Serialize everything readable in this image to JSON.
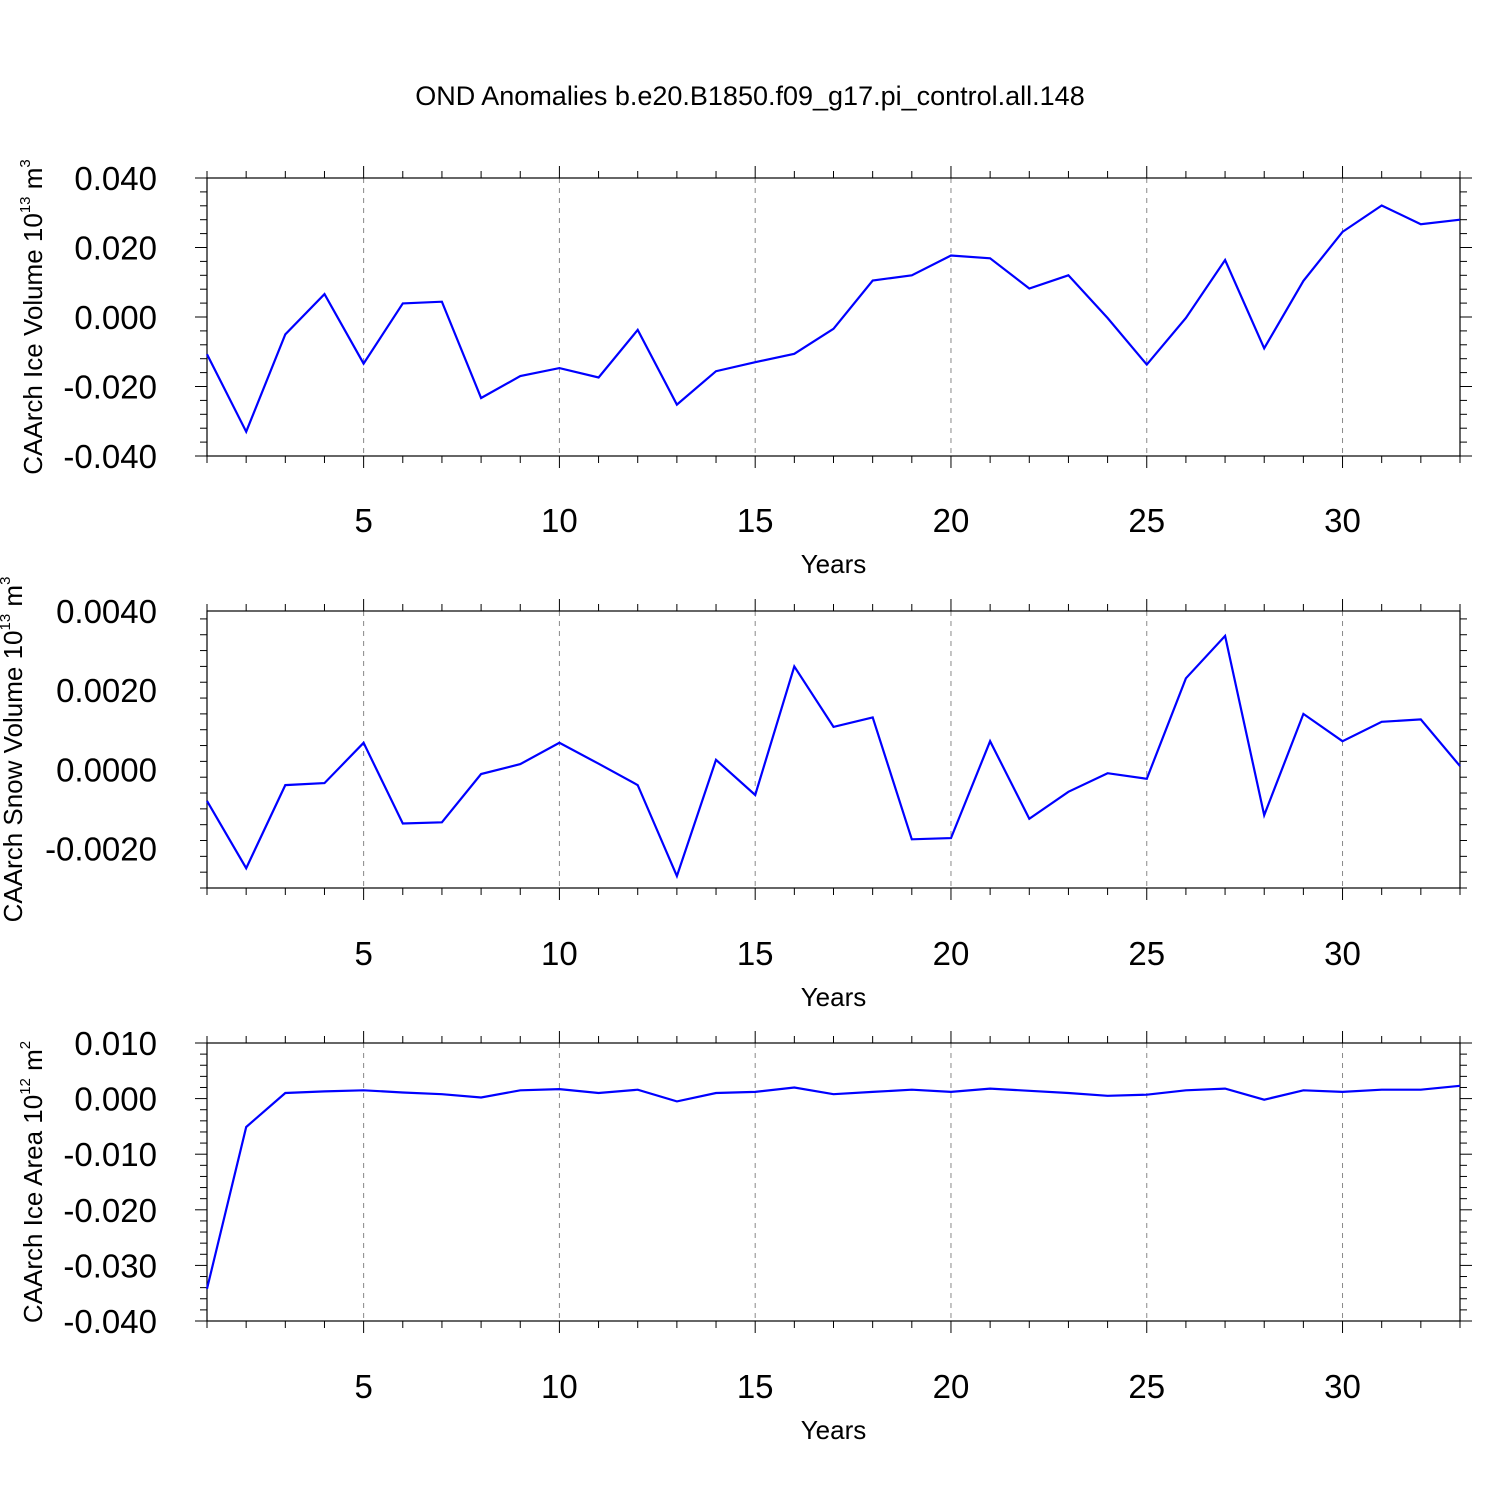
{
  "title": "OND Anomalies b.e20.B1850.f09_g17.pi_control.all.148",
  "line_color": "#0000ff",
  "chart_data": [
    {
      "type": "line",
      "xlabel": "Years",
      "ylabel": {
        "prefix": "CAArch Ice Volume 10",
        "exp": "13",
        "unit": " m",
        "unit_exp": "3"
      },
      "ylim": [
        -0.04,
        0.04
      ],
      "xlim": [
        1,
        33
      ],
      "yticks": [
        -0.04,
        -0.02,
        0.0,
        0.02,
        0.04
      ],
      "ytick_labels": [
        "-0.040",
        "-0.020",
        "0.000",
        "0.020",
        "0.040"
      ],
      "xticks": [
        5,
        10,
        15,
        20,
        25,
        30
      ],
      "x": [
        1,
        2,
        3,
        4,
        5,
        6,
        7,
        8,
        9,
        10,
        11,
        12,
        13,
        14,
        15,
        16,
        17,
        18,
        19,
        20,
        21,
        22,
        23,
        24,
        25,
        26,
        27,
        28,
        29,
        30,
        31,
        32,
        33
      ],
      "values": [
        -0.0107,
        -0.033,
        -0.005,
        0.0066,
        -0.0134,
        0.0039,
        0.0044,
        -0.0233,
        -0.017,
        -0.0147,
        -0.0174,
        -0.0037,
        -0.0252,
        -0.0156,
        -0.013,
        -0.0106,
        -0.0034,
        0.0105,
        0.012,
        0.0177,
        0.0169,
        0.0082,
        0.012,
        -0.0003,
        -0.0137,
        -0.0003,
        0.0164,
        -0.009,
        0.0104,
        0.0245,
        0.0321,
        0.0267,
        0.028
      ],
      "grid": "dashed vertical at major x ticks"
    },
    {
      "type": "line",
      "xlabel": "Years",
      "ylabel": {
        "prefix": "CAArch Snow Volume 10",
        "exp": "13",
        "unit": " m",
        "unit_exp": "3"
      },
      "ylim": [
        -0.003,
        0.004
      ],
      "xlim": [
        1,
        33
      ],
      "yticks": [
        -0.002,
        0.0,
        0.002,
        0.004
      ],
      "ytick_labels": [
        "-0.0020",
        "0.0000",
        "0.0020",
        "0.0040"
      ],
      "xticks": [
        5,
        10,
        15,
        20,
        25,
        30
      ],
      "x": [
        1,
        2,
        3,
        4,
        5,
        6,
        7,
        8,
        9,
        10,
        11,
        12,
        13,
        14,
        15,
        16,
        17,
        18,
        19,
        20,
        21,
        22,
        23,
        24,
        25,
        26,
        27,
        28,
        29,
        30,
        31,
        32,
        33
      ],
      "values": [
        -0.0008,
        -0.0025,
        -0.0004,
        -0.00035,
        0.00067,
        -0.00137,
        -0.00134,
        -0.00012,
        0.00013,
        0.00067,
        0.00014,
        -0.0004,
        -0.0027,
        0.00024,
        -0.00065,
        0.0026,
        0.00107,
        0.00131,
        -0.00177,
        -0.00174,
        0.00071,
        -0.00125,
        -0.00057,
        -0.0001,
        -0.00024,
        0.0023,
        0.00337,
        -0.00116,
        0.0014,
        0.00071,
        0.0012,
        0.00126,
        8e-05
      ],
      "grid": "dashed vertical at major x ticks"
    },
    {
      "type": "line",
      "xlabel": "Years",
      "ylabel": {
        "prefix": "CAArch Ice Area 10",
        "exp": "12",
        "unit": " m",
        "unit_exp": "2"
      },
      "ylim": [
        -0.04,
        0.01
      ],
      "xlim": [
        1,
        33
      ],
      "yticks": [
        -0.04,
        -0.03,
        -0.02,
        -0.01,
        0.0,
        0.01
      ],
      "ytick_labels": [
        "-0.040",
        "-0.030",
        "-0.020",
        "-0.010",
        "0.000",
        "0.010"
      ],
      "xticks": [
        5,
        10,
        15,
        20,
        25,
        30
      ],
      "x": [
        1,
        2,
        3,
        4,
        5,
        6,
        7,
        8,
        9,
        10,
        11,
        12,
        13,
        14,
        15,
        16,
        17,
        18,
        19,
        20,
        21,
        22,
        23,
        24,
        25,
        26,
        27,
        28,
        29,
        30,
        31,
        32,
        33
      ],
      "values": [
        -0.0342,
        -0.0051,
        0.001,
        0.0013,
        0.0015,
        0.0011,
        0.0008,
        0.0002,
        0.0015,
        0.0017,
        0.001,
        0.0016,
        -0.0005,
        0.001,
        0.0012,
        0.002,
        0.0008,
        0.0012,
        0.0016,
        0.0012,
        0.0018,
        0.0014,
        0.001,
        0.0005,
        0.0007,
        0.0015,
        0.0018,
        -0.0002,
        0.0015,
        0.0012,
        0.0016,
        0.0016,
        0.0023
      ],
      "grid": "dashed vertical at major x ticks"
    }
  ]
}
